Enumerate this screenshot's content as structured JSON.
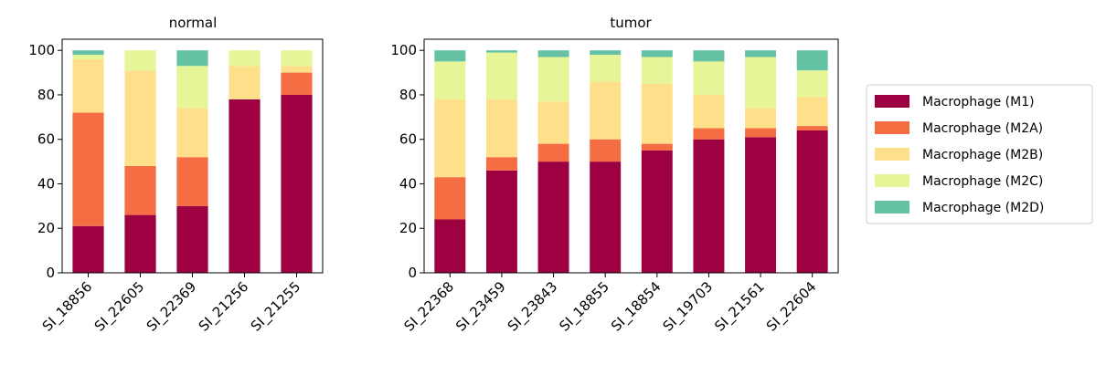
{
  "chart_data": {
    "type": "bar",
    "stacked": true,
    "ylim": [
      0,
      105
    ],
    "yticks": [
      0,
      20,
      40,
      60,
      80,
      100
    ],
    "legend_position": "right",
    "colors": {
      "Macrophage (M1)": "#9e0142",
      "Macrophage (M2A)": "#f46d43",
      "Macrophage (M2B)": "#fee08b",
      "Macrophage (M2C)": "#e6f598",
      "Macrophage (M2D)": "#66c2a5"
    },
    "legend": [
      "Macrophage (M1)",
      "Macrophage (M2A)",
      "Macrophage (M2B)",
      "Macrophage (M2C)",
      "Macrophage (M2D)"
    ],
    "panels": [
      {
        "title": "normal",
        "categories": [
          "SI_18856",
          "SI_22605",
          "SI_22369",
          "SI_21256",
          "SI_21255"
        ],
        "series": [
          {
            "name": "Macrophage (M1)",
            "values": [
              21,
              26,
              30,
              78,
              80
            ]
          },
          {
            "name": "Macrophage (M2A)",
            "values": [
              51,
              22,
              22,
              0,
              10
            ]
          },
          {
            "name": "Macrophage (M2B)",
            "values": [
              24,
              43,
              22,
              15,
              3
            ]
          },
          {
            "name": "Macrophage (M2C)",
            "values": [
              2,
              9,
              19,
              7,
              7
            ]
          },
          {
            "name": "Macrophage (M2D)",
            "values": [
              2,
              0,
              7,
              0,
              0
            ]
          }
        ]
      },
      {
        "title": "tumor",
        "categories": [
          "SI_22368",
          "SI_23459",
          "SI_23843",
          "SI_18855",
          "SI_18854",
          "SI_19703",
          "SI_21561",
          "SI_22604"
        ],
        "series": [
          {
            "name": "Macrophage (M1)",
            "values": [
              24,
              46,
              50,
              50,
              55,
              60,
              61,
              64
            ]
          },
          {
            "name": "Macrophage (M2A)",
            "values": [
              19,
              6,
              8,
              10,
              3,
              5,
              4,
              2
            ]
          },
          {
            "name": "Macrophage (M2B)",
            "values": [
              35,
              26,
              19,
              26,
              27,
              15,
              9,
              13
            ]
          },
          {
            "name": "Macrophage (M2C)",
            "values": [
              17,
              21,
              20,
              12,
              12,
              15,
              23,
              12
            ]
          },
          {
            "name": "Macrophage (M2D)",
            "values": [
              5,
              1,
              3,
              2,
              3,
              5,
              3,
              9
            ]
          }
        ]
      }
    ]
  }
}
